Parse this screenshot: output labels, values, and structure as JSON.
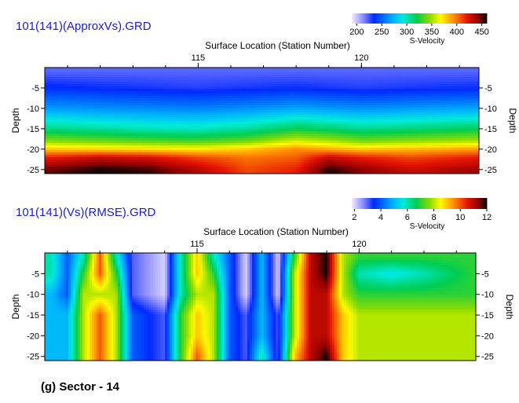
{
  "caption": "(g) Sector - 14",
  "chart_data": [
    {
      "type": "heatmap",
      "title": "101(141)(ApproxVs).GRD",
      "xlabel": "Surface Location (Station Number)",
      "ylabel": "Depth",
      "x_ticks": [
        115,
        120
      ],
      "y_ticks": [
        -5,
        -10,
        -15,
        -20,
        -25
      ],
      "xlim": [
        110.3,
        123.6
      ],
      "ylim": [
        -26,
        0
      ],
      "colorbar": {
        "label": "S-Velocity",
        "ticks": [
          200,
          250,
          300,
          350,
          400,
          450
        ],
        "range": [
          190,
          460
        ]
      },
      "grid": false,
      "legend": "top-right",
      "x": [
        110.5,
        112,
        113.5,
        115,
        116.5,
        118,
        119,
        120,
        121.5,
        123.5
      ],
      "y": [
        -1,
        -5,
        -10,
        -15,
        -18,
        -20,
        -22,
        -25
      ],
      "z": [
        [
          220,
          220,
          220,
          220,
          220,
          220,
          220,
          220,
          220,
          220
        ],
        [
          235,
          232,
          230,
          228,
          230,
          232,
          230,
          228,
          230,
          232
        ],
        [
          265,
          262,
          260,
          258,
          262,
          268,
          265,
          262,
          265,
          268
        ],
        [
          310,
          305,
          300,
          298,
          305,
          320,
          315,
          308,
          312,
          318
        ],
        [
          345,
          340,
          335,
          332,
          340,
          360,
          352,
          342,
          346,
          352
        ],
        [
          380,
          378,
          375,
          372,
          380,
          395,
          388,
          380,
          384,
          390
        ],
        [
          420,
          430,
          425,
          410,
          400,
          405,
          430,
          420,
          410,
          420
        ],
        [
          450,
          460,
          455,
          435,
          410,
          420,
          458,
          445,
          430,
          440
        ]
      ]
    },
    {
      "type": "heatmap",
      "title": "101(141)(Vs)(RMSE).GRD",
      "xlabel": "Surface Location (Station Number)",
      "ylabel": "Depth",
      "x_ticks": [
        115,
        120
      ],
      "y_ticks": [
        -5,
        -10,
        -15,
        -20,
        -25
      ],
      "xlim": [
        110.3,
        123.6
      ],
      "ylim": [
        -26,
        0
      ],
      "colorbar": {
        "label": "S-Velocity",
        "ticks": [
          2,
          4,
          6,
          8,
          10,
          12
        ],
        "range": [
          1.8,
          12
        ]
      },
      "grid": false,
      "legend": "top-right",
      "x": [
        110.5,
        111,
        111.5,
        112,
        112.5,
        113,
        114,
        114.5,
        115,
        115.5,
        116,
        116.5,
        117,
        117.5,
        118,
        118.5,
        119,
        119.5,
        120,
        121,
        122,
        123.5
      ],
      "y": [
        -1,
        -5,
        -10,
        -15,
        -20,
        -25
      ],
      "z": [
        [
          6,
          4,
          6,
          10,
          6,
          3,
          2,
          6,
          9,
          6,
          4,
          2,
          5,
          2,
          7,
          11,
          12,
          8,
          7,
          7,
          7,
          7
        ],
        [
          6,
          4,
          7,
          10,
          7,
          3,
          2,
          6,
          9,
          7,
          4,
          2,
          5,
          2,
          8,
          11,
          12,
          8,
          6,
          5.5,
          6,
          7
        ],
        [
          5,
          4,
          8,
          8,
          8,
          3,
          2,
          6,
          8,
          8,
          4,
          2,
          5,
          2,
          8,
          11,
          11,
          8,
          7,
          7,
          7,
          7
        ],
        [
          5,
          5,
          8,
          10,
          8,
          4,
          3,
          7,
          9,
          8,
          4,
          3,
          5,
          3,
          8,
          11,
          11,
          9,
          8,
          8,
          8,
          8
        ],
        [
          5,
          5,
          8,
          10,
          8,
          4,
          3,
          7,
          9,
          8,
          4,
          3,
          5,
          3,
          8,
          11,
          11,
          9,
          8,
          8,
          8,
          8
        ],
        [
          5,
          5,
          8,
          10,
          8,
          4,
          3,
          7,
          10,
          8,
          4,
          3,
          6,
          3,
          9,
          11,
          12,
          9,
          8,
          8,
          8,
          8
        ]
      ]
    }
  ]
}
